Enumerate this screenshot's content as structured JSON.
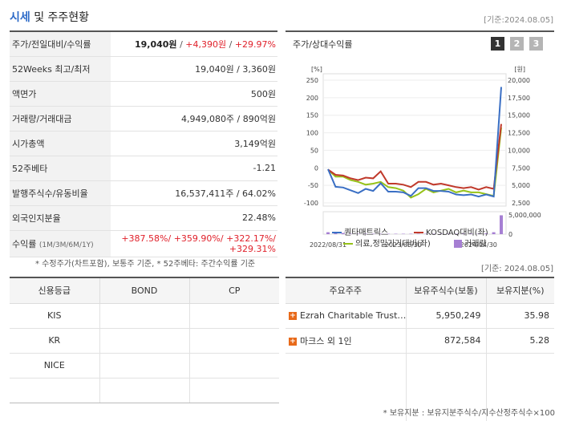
{
  "header": {
    "title_main": "시세",
    "title_rest": " 및 주주현황",
    "date": "[기준:2024.08.05]"
  },
  "summary": {
    "rows": [
      {
        "label": "주가/전일대비/수익률"
      },
      {
        "label": "52Weeks 최고/최저",
        "value": "19,040원 / 3,360원"
      },
      {
        "label": "액면가",
        "value": "500원"
      },
      {
        "label": "거래량/거래대금",
        "value": "4,949,080주 / 890억원"
      },
      {
        "label": "시가총액",
        "value": "3,149억원"
      },
      {
        "label": "52주베타",
        "value": "-1.21"
      },
      {
        "label": "발행주식수/유동비율",
        "value": "16,537,411주 / 64.02%"
      },
      {
        "label": "외국인지분율",
        "value": "22.48%"
      },
      {
        "label": "수익률",
        "label_sub": "(1M/3M/6M/1Y)"
      }
    ],
    "price": "19,040원",
    "change": "+4,390원",
    "rate": "+29.97%",
    "returns": [
      "+387.58%",
      "+359.90%",
      "+322.17%",
      "+329.31%"
    ],
    "sep": "/",
    "note": "* 수정주가(차트포함), 보통주 기준, * 52주베타: 주간수익률 기준"
  },
  "chart": {
    "title": "주가/상대수익률",
    "pages": [
      "1",
      "2",
      "3"
    ],
    "legend": {
      "s1": "퀀타매트릭스",
      "s2": "KOSDAQ대비(좌)",
      "s3": "의료,정밀기기대비(좌)",
      "s4": "거래량"
    },
    "colors": {
      "s1": "#3a6fc4",
      "s2": "#c0392b",
      "s3": "#96c219",
      "s4": "#a67fd3"
    }
  },
  "chart_data": {
    "type": "line",
    "left_axis": {
      "unit": "[%]",
      "ticks": [
        "250",
        "200",
        "150",
        "100",
        "50",
        "0",
        "-50",
        "-100"
      ],
      "range": [
        -100,
        250
      ]
    },
    "right_axis": {
      "unit": "[원]",
      "ticks": [
        "20,000",
        "17,500",
        "15,000",
        "12,500",
        "10,000",
        "7,500",
        "5,000",
        "2,500"
      ],
      "range": [
        2500,
        20000
      ]
    },
    "volume_axis": {
      "ticks": [
        "5,000,000",
        "0"
      ],
      "range": [
        0,
        5000000
      ]
    },
    "x_ticks": [
      "2022/08/31",
      "2023/06/30",
      "2024/04/30"
    ],
    "series": [
      {
        "name": "퀀타매트릭스",
        "axis": "right",
        "values": [
          7300,
          4800,
          4700,
          4300,
          3900,
          4500,
          4200,
          5300,
          4100,
          4100,
          4000,
          3500,
          4600,
          4600,
          4200,
          4200,
          4100,
          3700,
          3600,
          3700,
          3400,
          3700,
          3400,
          19040
        ]
      },
      {
        "name": "KOSDAQ대비(좌)",
        "axis": "left",
        "values": [
          -5,
          -20,
          -22,
          -30,
          -35,
          -28,
          -30,
          -10,
          -45,
          -45,
          -48,
          -55,
          -40,
          -40,
          -48,
          -45,
          -50,
          -55,
          -58,
          -55,
          -62,
          -55,
          -60,
          125
        ]
      },
      {
        "name": "의료,정밀기기대비(좌)",
        "axis": "left",
        "values": [
          -5,
          -25,
          -25,
          -35,
          -40,
          -48,
          -45,
          -40,
          -55,
          -58,
          -65,
          -85,
          -75,
          -60,
          -70,
          -65,
          -60,
          -70,
          -65,
          -70,
          -70,
          -75,
          -80,
          115
        ]
      },
      {
        "name": "거래량",
        "axis": "volume",
        "values": [
          500000,
          200000,
          300000,
          100000,
          100000,
          100000,
          100000,
          100000,
          100000,
          100000,
          100000,
          100000,
          100000,
          100000,
          100000,
          100000,
          100000,
          100000,
          100000,
          100000,
          100000,
          200000,
          500000,
          4900000
        ]
      }
    ]
  },
  "date2": "[기준: 2024.08.05]",
  "credit": {
    "headers": [
      "신용등급",
      "BOND",
      "CP"
    ],
    "rows": [
      {
        "agency": "KIS",
        "bond": "",
        "cp": ""
      },
      {
        "agency": "KR",
        "bond": "",
        "cp": ""
      },
      {
        "agency": "NICE",
        "bond": "",
        "cp": ""
      },
      {
        "agency": "",
        "bond": "",
        "cp": ""
      }
    ]
  },
  "holders": {
    "headers": [
      "주요주주",
      "보유주식수(보통)",
      "보유지분(%)"
    ],
    "rows": [
      {
        "name": "Ezrah Charitable Trust…",
        "shares": "5,950,249",
        "pct": "35.98"
      },
      {
        "name": "마크스 외 1인",
        "shares": "872,584",
        "pct": "5.28"
      }
    ],
    "plus": "+",
    "note": "* 보유지분 : 보유지분주식수/지수산정주식수×100"
  }
}
